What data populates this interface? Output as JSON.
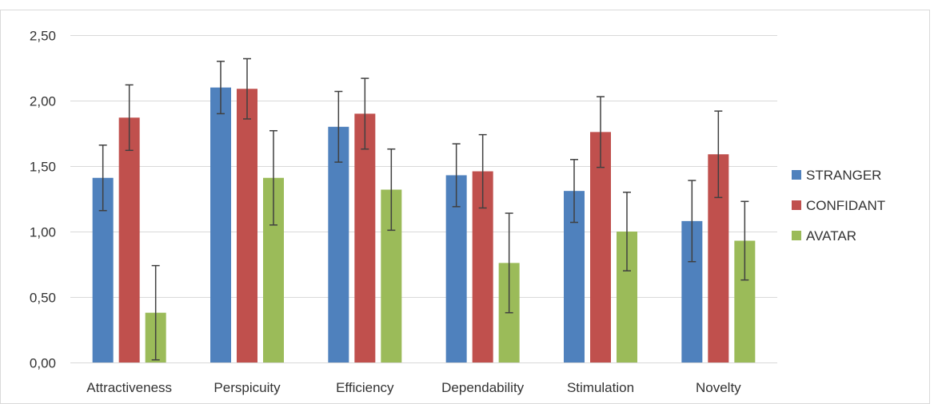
{
  "chart_data": {
    "type": "bar",
    "title": "",
    "xlabel": "",
    "ylabel": "",
    "categories": [
      "Attractiveness",
      "Perspicuity",
      "Efficiency",
      "Dependability",
      "Stimulation",
      "Novelty"
    ],
    "series": [
      {
        "name": "STRANGER",
        "color": "#4f81bd",
        "values": [
          1.41,
          2.1,
          1.8,
          1.43,
          1.31,
          1.08
        ],
        "error": [
          0.25,
          0.2,
          0.27,
          0.24,
          0.24,
          0.31
        ]
      },
      {
        "name": "CONFIDANT",
        "color": "#c0504d",
        "values": [
          1.87,
          2.09,
          1.9,
          1.46,
          1.76,
          1.59
        ],
        "error": [
          0.25,
          0.23,
          0.27,
          0.28,
          0.27,
          0.33
        ]
      },
      {
        "name": "AVATAR",
        "color": "#9bbb59",
        "values": [
          0.38,
          1.41,
          1.32,
          0.76,
          1.0,
          0.93
        ],
        "error": [
          0.36,
          0.36,
          0.31,
          0.38,
          0.3,
          0.3
        ]
      }
    ],
    "yticks": [
      "0,00",
      "0,50",
      "1,00",
      "1,50",
      "2,00",
      "2,50"
    ],
    "ylim": [
      0,
      2.5
    ],
    "grid": true,
    "legend": "right",
    "error_bar_color": "#404040",
    "gridline_color": "#d9d9d9"
  }
}
